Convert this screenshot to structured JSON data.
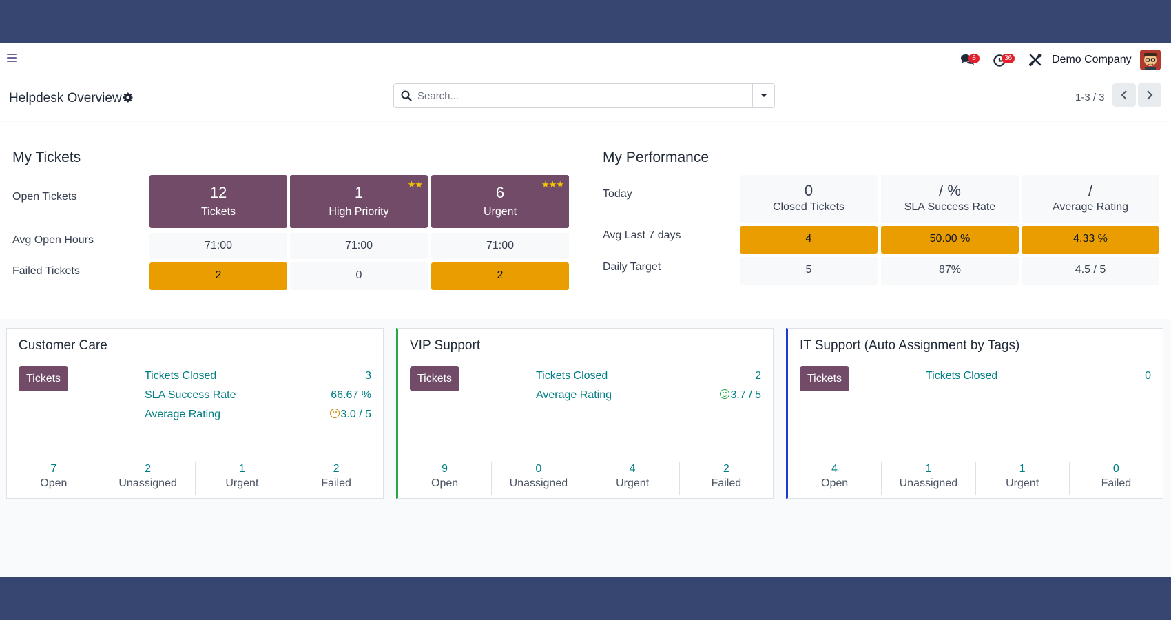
{
  "navbar": {
    "messages_badge": "8",
    "activities_badge": "36",
    "company": "Demo Company"
  },
  "control": {
    "title": "Helpdesk Overview",
    "search_placeholder": "Search...",
    "pager": "1-3 / 3"
  },
  "my_tickets": {
    "title": "My Tickets",
    "rows": {
      "open": "Open Tickets",
      "avg_hours": "Avg Open Hours",
      "failed": "Failed Tickets"
    },
    "columns": [
      {
        "count": "12",
        "label": "Tickets",
        "avg_hours": "71:00",
        "failed": "2",
        "stars": 0
      },
      {
        "count": "1",
        "label": "High Priority",
        "avg_hours": "71:00",
        "failed": "0",
        "stars": 2
      },
      {
        "count": "6",
        "label": "Urgent",
        "avg_hours": "71:00",
        "failed": "2",
        "stars": 3
      }
    ]
  },
  "my_performance": {
    "title": "My Performance",
    "rows": {
      "today": "Today",
      "avg7": "Avg Last 7 days",
      "target": "Daily Target"
    },
    "columns": [
      {
        "today_value": "0",
        "label": "Closed Tickets",
        "avg7": "4",
        "target": "5"
      },
      {
        "today_value": "/ %",
        "label": "SLA Success Rate",
        "avg7": "50.00 %",
        "target": "87%"
      },
      {
        "today_value": "/",
        "label": "Average Rating",
        "avg7": "4.33 %",
        "target": "4.5 / 5"
      }
    ]
  },
  "teams": [
    {
      "name": "Customer Care",
      "button": "Tickets",
      "accent": "#dee2e6",
      "stats": [
        {
          "label": "Tickets Closed",
          "value": "3"
        },
        {
          "label": "SLA Success Rate",
          "value": "66.67 %"
        },
        {
          "label": "Average Rating",
          "value": "3.0 / 5",
          "smiley": "neutral"
        }
      ],
      "footer": [
        {
          "count": "7",
          "label": "Open"
        },
        {
          "count": "2",
          "label": "Unassigned"
        },
        {
          "count": "1",
          "label": "Urgent"
        },
        {
          "count": "2",
          "label": "Failed"
        }
      ]
    },
    {
      "name": "VIP Support",
      "button": "Tickets",
      "accent": "#28a745",
      "stats": [
        {
          "label": "Tickets Closed",
          "value": "2"
        },
        {
          "label": "Average Rating",
          "value": "3.7 / 5",
          "smiley": "happy"
        }
      ],
      "footer": [
        {
          "count": "9",
          "label": "Open"
        },
        {
          "count": "0",
          "label": "Unassigned"
        },
        {
          "count": "4",
          "label": "Urgent"
        },
        {
          "count": "2",
          "label": "Failed"
        }
      ]
    },
    {
      "name": "IT Support (Auto Assignment by Tags)",
      "button": "Tickets",
      "accent": "#1d3bd1",
      "stats": [
        {
          "label": "Tickets Closed",
          "value": "0"
        }
      ],
      "footer": [
        {
          "count": "4",
          "label": "Open"
        },
        {
          "count": "1",
          "label": "Unassigned"
        },
        {
          "count": "1",
          "label": "Urgent"
        },
        {
          "count": "0",
          "label": "Failed"
        }
      ]
    }
  ],
  "colors": {
    "primary": "#714b67",
    "warning": "#e99d00",
    "link": "#017e84",
    "neutral_smiley": "#c68a00",
    "happy_smiley": "#28a745"
  }
}
